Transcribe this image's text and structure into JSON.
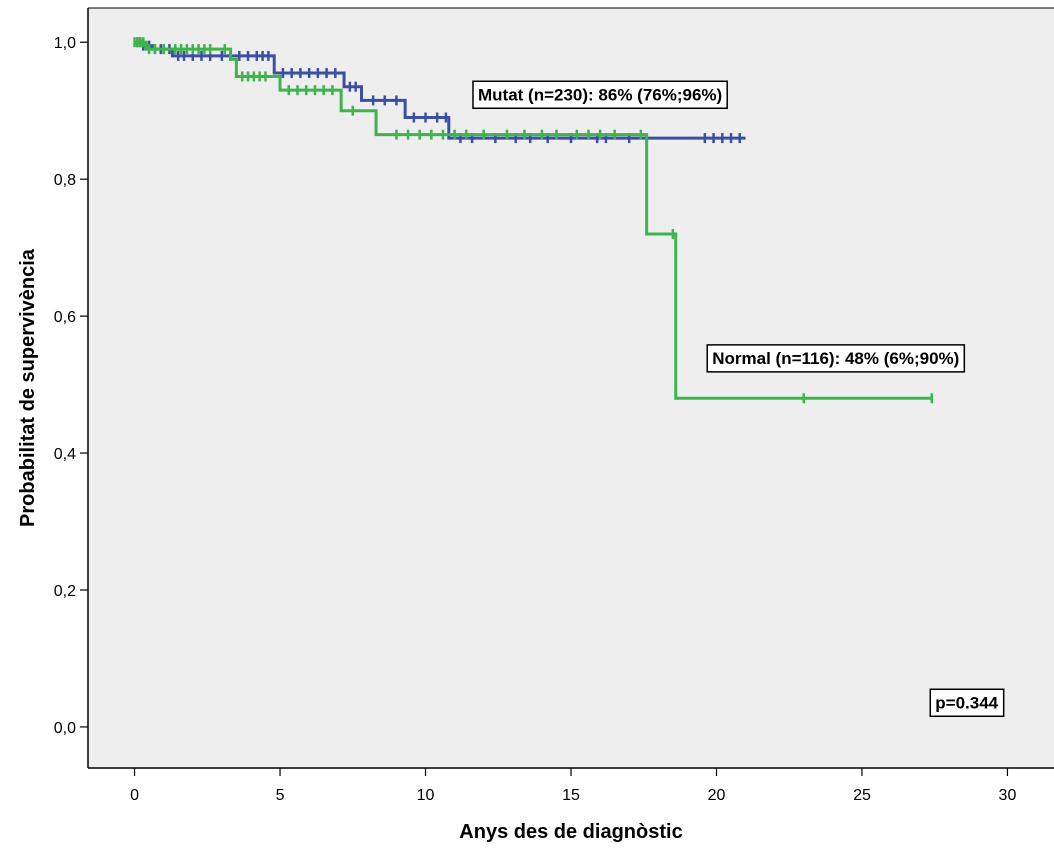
{
  "chart_data": {
    "type": "line",
    "xlabel": "Anys des de diagnòstic",
    "ylabel": "Probabilitat de supervivència",
    "xlim": [
      -1.6,
      31.6
    ],
    "ylim": [
      -0.06,
      1.05
    ],
    "x_ticks": [
      0,
      5,
      10,
      15,
      20,
      25,
      30
    ],
    "y_ticks": [
      0.0,
      0.2,
      0.4,
      0.6,
      0.8,
      1.0
    ],
    "x_tick_labels": [
      "0",
      "5",
      "10",
      "15",
      "20",
      "25",
      "30"
    ],
    "y_tick_labels": [
      "0,0",
      "0,2",
      "0,4",
      "0,6",
      "0,8",
      "1,0"
    ],
    "grid": false,
    "background_color": "#eeeeee",
    "series": [
      {
        "color": "#3b4fa3",
        "step_points": [
          [
            0,
            1.0
          ],
          [
            0.3,
            0.995
          ],
          [
            0.6,
            0.99
          ],
          [
            1.3,
            0.98
          ],
          [
            4.8,
            0.955
          ],
          [
            7.2,
            0.935
          ],
          [
            7.8,
            0.915
          ],
          [
            9.3,
            0.89
          ],
          [
            10.8,
            0.86
          ],
          [
            21.0,
            0.86
          ]
        ],
        "censor_marks": [
          0.1,
          0.2,
          0.3,
          0.5,
          0.7,
          0.9,
          1.0,
          1.2,
          1.5,
          1.7,
          2.0,
          2.3,
          2.6,
          3.0,
          3.3,
          3.6,
          3.9,
          4.2,
          4.4,
          4.6,
          5.1,
          5.4,
          5.7,
          6.0,
          6.3,
          6.6,
          6.9,
          7.4,
          7.6,
          8.2,
          8.6,
          9.0,
          9.6,
          10.0,
          10.4,
          10.7,
          11.2,
          11.6,
          12.4,
          13.1,
          13.6,
          14.2,
          15.0,
          15.9,
          16.2,
          17.0,
          19.6,
          19.9,
          20.2,
          20.5,
          20.8
        ],
        "label": "Mutat (n=230): 86% (76%;96%)"
      },
      {
        "color": "#3cb54a",
        "step_points": [
          [
            0,
            1.0
          ],
          [
            0.4,
            0.99
          ],
          [
            3.3,
            0.975
          ],
          [
            3.5,
            0.95
          ],
          [
            5.0,
            0.93
          ],
          [
            7.1,
            0.9
          ],
          [
            8.3,
            0.865
          ],
          [
            17.6,
            0.72
          ],
          [
            18.6,
            0.48
          ],
          [
            27.4,
            0.48
          ]
        ],
        "censor_marks": [
          0.0,
          0.1,
          0.2,
          0.3,
          0.5,
          0.7,
          1.0,
          1.4,
          1.6,
          1.8,
          2.0,
          2.2,
          2.4,
          2.6,
          3.1,
          3.7,
          3.9,
          4.1,
          4.3,
          4.5,
          5.3,
          5.6,
          5.9,
          6.2,
          6.5,
          6.8,
          7.5,
          9.0,
          9.4,
          9.8,
          10.2,
          10.6,
          11.0,
          11.4,
          12.0,
          12.8,
          13.4,
          14.0,
          14.5,
          15.2,
          15.6,
          16.0,
          16.5,
          17.4,
          18.5,
          23.0,
          27.4
        ]
      }
    ],
    "annotations": [
      {
        "id": "mutat",
        "text": "Mutat (n=230): 86% (76%;96%)",
        "x": 16.0,
        "y": 0.924
      },
      {
        "id": "normal",
        "text": "Normal (n=116): 48% (6%;90%)",
        "x": 24.1,
        "y": 0.539
      },
      {
        "id": "pvalue",
        "text": "p=0.344",
        "x": 28.6,
        "y": 0.036
      }
    ]
  }
}
